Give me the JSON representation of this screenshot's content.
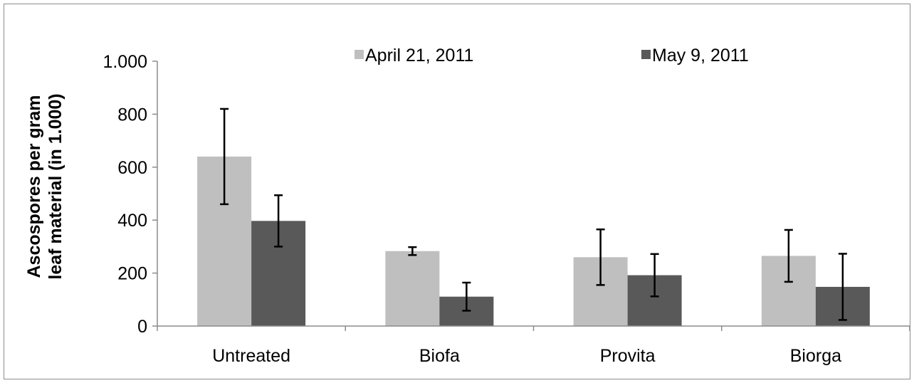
{
  "chart_data": {
    "type": "bar",
    "title": "",
    "xlabel": "",
    "ylabel_lines": [
      "Ascospores per gram",
      "leaf material (in 1.000)"
    ],
    "categories": [
      "Untreated",
      "Biofa",
      "Provita",
      "Biorga"
    ],
    "ylim": [
      0,
      1000
    ],
    "yticks": [
      0,
      200,
      400,
      600,
      800,
      1000
    ],
    "ytick_labels": [
      "0",
      "200",
      "400",
      "600",
      "800",
      "1.000"
    ],
    "series": [
      {
        "name": "April 21, 2011",
        "color": "#bfbfbf",
        "values": [
          640,
          283,
          260,
          265
        ],
        "error": [
          180,
          15,
          105,
          98
        ]
      },
      {
        "name": "May 9, 2011",
        "color": "#595959",
        "values": [
          397,
          111,
          192,
          148
        ],
        "error": [
          97,
          53,
          80,
          125
        ]
      }
    ],
    "legend_position": "top",
    "grid": false
  }
}
